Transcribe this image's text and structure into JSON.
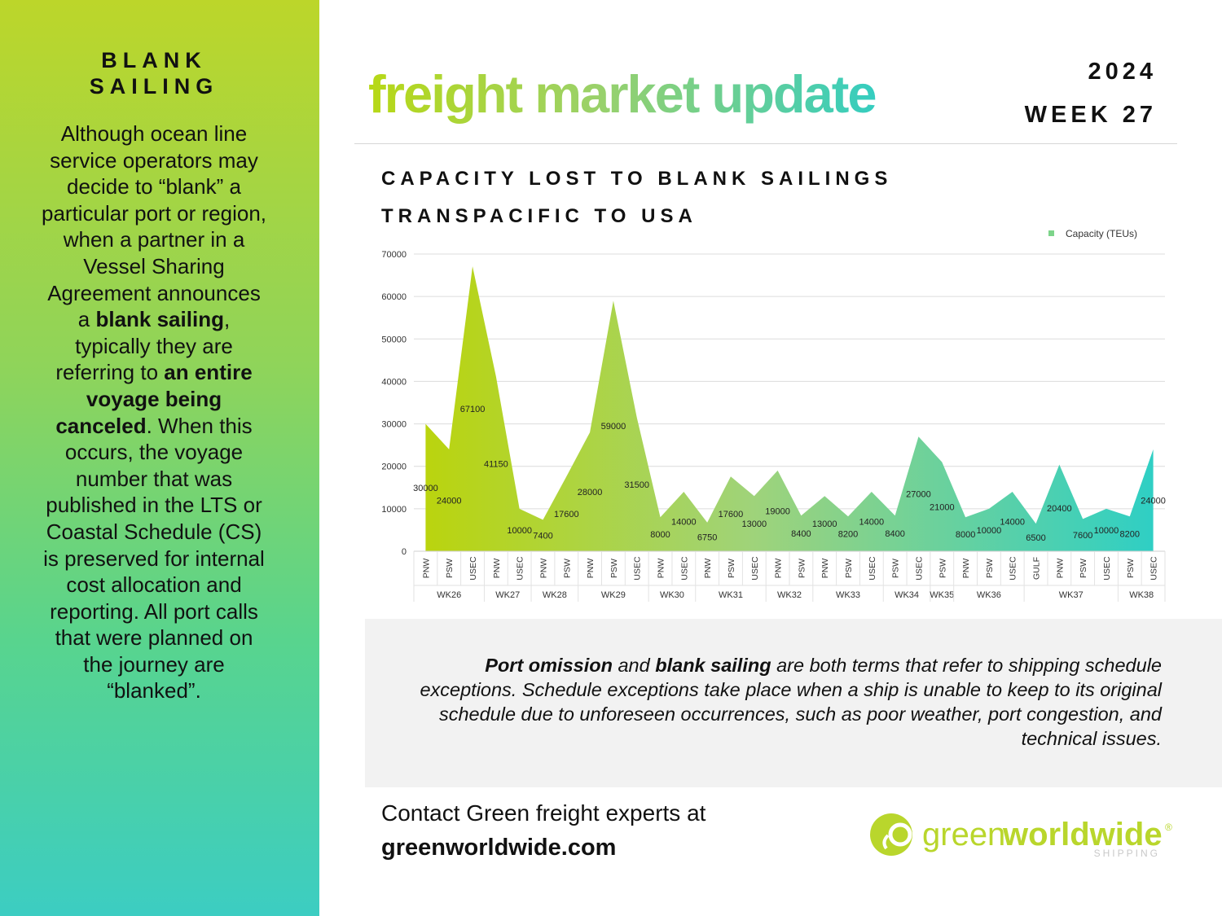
{
  "sidebar": {
    "title_line1": "BLANK",
    "title_line2": "SAILING",
    "body": [
      {
        "text": "Although ocean line service operators may decide to “blank” a particular port or region, when a partner in a Vessel Sharing Agreement announces a ",
        "bold": false
      },
      {
        "text": "blank sailing",
        "bold": true
      },
      {
        "text": ", typically they are referring to ",
        "bold": false
      },
      {
        "text": "an entire voyage being canceled",
        "bold": true
      },
      {
        "text": ". When this occurs, the voyage number that was published in the LTS or Coastal Schedule (CS) is preserved for internal cost allocation and reporting. All port calls that were planned on the journey are “blanked”.",
        "bold": false
      }
    ]
  },
  "header": {
    "title": "freight market update",
    "year": "2024",
    "week": "WEEK 27"
  },
  "chart_heading": {
    "line1": "CAPACITY LOST TO BLANK SAILINGS",
    "line2": "TRANSPACIFIC TO USA"
  },
  "info": [
    {
      "text": "Port omission",
      "bold": true
    },
    {
      "text": " and ",
      "bold": false
    },
    {
      "text": "blank sailing",
      "bold": true
    },
    {
      "text": " are both terms that refer to shipping schedule exceptions. Schedule exceptions take place when a ship is unable to keep to its original schedule due to unforeseen occurrences, such as poor weather, port congestion, and technical issues.",
      "bold": false
    }
  ],
  "contact": {
    "line1": "Contact Green freight experts at",
    "line2": "greenworldwide.com"
  },
  "logo": {
    "name": "greenworldwide",
    "part1": "green",
    "part2": "worldwide",
    "tagline": "SHIPPING",
    "registered": "®"
  },
  "colors": {
    "gradient_start": "#bcd62a",
    "gradient_mid": "#8fd45a",
    "gradient_end": "#3ccdc2",
    "legend_swatch": "#7dd48a"
  },
  "chart_data": {
    "type": "area",
    "series": [
      {
        "name": "Capacity (TEUs)",
        "values": [
          30000,
          24000,
          67100,
          41150,
          10000,
          7400,
          17600,
          28000,
          59000,
          31500,
          8000,
          14000,
          6750,
          17600,
          13000,
          19000,
          8400,
          13000,
          8200,
          14000,
          8400,
          27000,
          21000,
          8000,
          10000,
          14000,
          6500,
          20400,
          7600,
          10000,
          8200,
          24000
        ]
      }
    ],
    "categories": [
      "PNW",
      "PSW",
      "USEC",
      "PNW",
      "USEC",
      "PNW",
      "PSW",
      "PNW",
      "PSW",
      "USEC",
      "PNW",
      "USEC",
      "PNW",
      "PSW",
      "USEC",
      "PNW",
      "PSW",
      "PNW",
      "PSW",
      "USEC",
      "PSW",
      "USEC",
      "PSW",
      "PNW",
      "PSW",
      "USEC",
      "GULF",
      "PNW",
      "PSW",
      "USEC",
      "PSW",
      "USEC"
    ],
    "groups": [
      {
        "label": "WK26",
        "count": 3
      },
      {
        "label": "WK27",
        "count": 2
      },
      {
        "label": "WK28",
        "count": 2
      },
      {
        "label": "WK29",
        "count": 3
      },
      {
        "label": "WK30",
        "count": 2
      },
      {
        "label": "WK31",
        "count": 3
      },
      {
        "label": "WK32",
        "count": 2
      },
      {
        "label": "WK33",
        "count": 3
      },
      {
        "label": "WK34",
        "count": 2
      },
      {
        "label": "WK35",
        "count": 1
      },
      {
        "label": "WK36",
        "count": 3
      },
      {
        "label": "WK37",
        "count": 4
      },
      {
        "label": "WK38",
        "count": 2
      }
    ],
    "ylim": [
      0,
      70000
    ],
    "yticks": [
      0,
      10000,
      20000,
      30000,
      40000,
      50000,
      60000,
      70000
    ],
    "legend_position": "top-right",
    "grid": true
  }
}
